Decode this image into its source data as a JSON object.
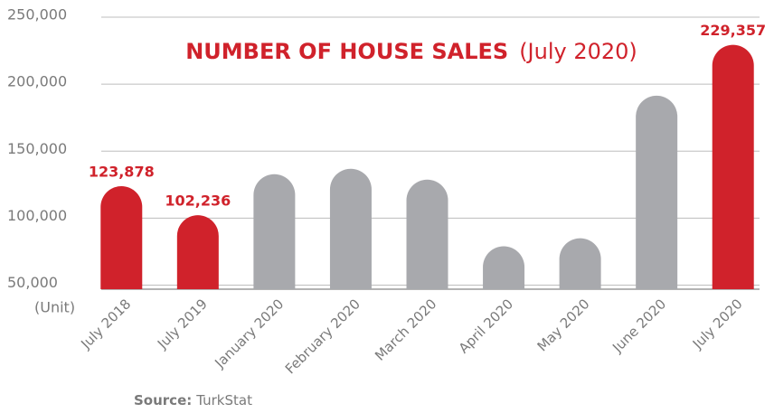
{
  "chart_data": {
    "type": "bar",
    "title": "NUMBER OF HOUSE SALES",
    "subtitle": "(July 2020)",
    "unit": "(Unit)",
    "source_label": "Source:",
    "source": "TurkStat",
    "categories": [
      "July 2018",
      "July 2019",
      "January 2020",
      "February 2020",
      "March 2020",
      "April 2020",
      "May 2020",
      "June 2020",
      "July 2020"
    ],
    "values": [
      123878,
      102236,
      132800,
      136900,
      128800,
      79000,
      85000,
      191400,
      229357
    ],
    "value_labels": [
      "123,878",
      "102,236",
      null,
      null,
      null,
      null,
      null,
      null,
      "229,357"
    ],
    "colors": [
      "#d0222b",
      "#d0222b",
      "#a8a9ad",
      "#a8a9ad",
      "#a8a9ad",
      "#a8a9ad",
      "#a8a9ad",
      "#a8a9ad",
      "#d0222b"
    ],
    "ylim": [
      47000,
      250000
    ],
    "yticks": [
      {
        "value": 50000,
        "label": "50,000"
      },
      {
        "value": 100000,
        "label": "100,000"
      },
      {
        "value": 150000,
        "label": "150,000"
      },
      {
        "value": 200000,
        "label": "200,000"
      },
      {
        "value": 250000,
        "label": "250,000"
      }
    ],
    "grid": true
  }
}
